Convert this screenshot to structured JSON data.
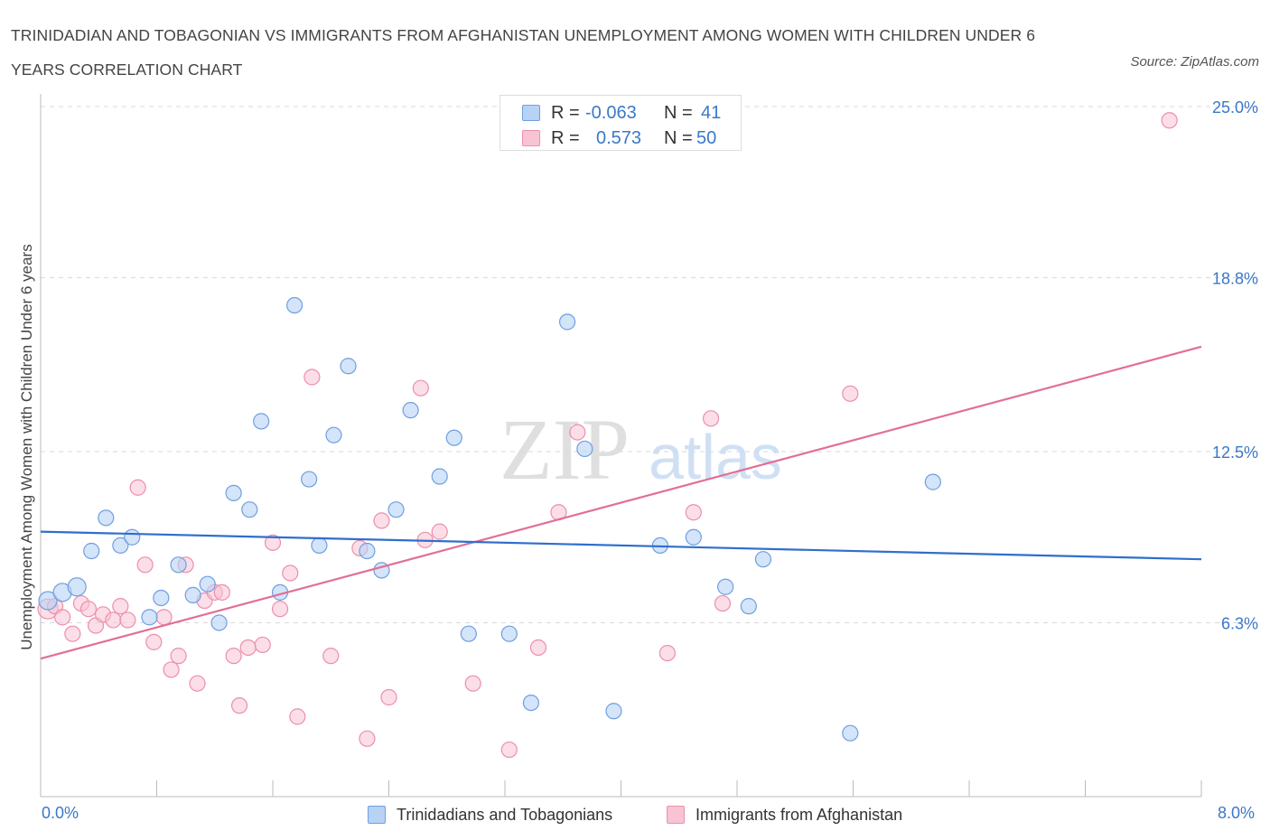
{
  "header": {
    "title": "TRINIDADIAN AND TOBAGONIAN VS IMMIGRANTS FROM AFGHANISTAN UNEMPLOYMENT AMONG WOMEN WITH CHILDREN UNDER 6 YEARS CORRELATION CHART",
    "source": "Source: ZipAtlas.com"
  },
  "watermark": {
    "zip": "ZIP",
    "atlas": "atlas"
  },
  "stats": {
    "r_label": "R =",
    "n_label": "N =",
    "rows": [
      {
        "r": "-0.063",
        "n": "41"
      },
      {
        "r": "0.573",
        "n": "50"
      }
    ]
  },
  "legend": {
    "items": [
      {
        "label": "Trinidadians and Tobagonians"
      },
      {
        "label": "Immigrants from Afghanistan"
      }
    ]
  },
  "colors": {
    "blue_fill": "#b8d2f5",
    "blue_stroke": "#6f9fe0",
    "blue_line": "#2f6fcc",
    "pink_fill": "#f8c3d3",
    "pink_stroke": "#ec8fab",
    "pink_line": "#e36d96",
    "axis_text": "#3a78c9",
    "grid": "#d9d9d9"
  },
  "chart_data": {
    "type": "scatter",
    "xlabel": "",
    "ylabel": "Unemployment Among Women with Children Under 6 years",
    "xlim": [
      0,
      8.0
    ],
    "ylim": [
      0,
      25.0
    ],
    "x_tick_labels": [
      "0.0%",
      "8.0%"
    ],
    "y_ticks": [
      6.3,
      12.5,
      18.8,
      25.0
    ],
    "y_tick_labels": [
      "6.3%",
      "12.5%",
      "18.8%",
      "25.0%"
    ],
    "grid": "horizontal dashed",
    "legend_position": "bottom-center",
    "series": [
      {
        "name": "Trinidadians and Tobagonians",
        "r": -0.063,
        "n": 41,
        "trend": {
          "x": [
            0,
            8.0
          ],
          "y": [
            9.6,
            8.6
          ]
        },
        "points": [
          [
            0.05,
            7.1
          ],
          [
            0.15,
            7.4
          ],
          [
            0.25,
            7.6
          ],
          [
            0.35,
            8.9
          ],
          [
            0.45,
            10.1
          ],
          [
            0.55,
            9.1
          ],
          [
            0.63,
            9.4
          ],
          [
            0.75,
            6.5
          ],
          [
            0.83,
            7.2
          ],
          [
            0.95,
            8.4
          ],
          [
            1.05,
            7.3
          ],
          [
            1.15,
            7.7
          ],
          [
            1.23,
            6.3
          ],
          [
            1.33,
            11.0
          ],
          [
            1.44,
            10.4
          ],
          [
            1.52,
            13.6
          ],
          [
            1.65,
            7.4
          ],
          [
            1.75,
            17.8
          ],
          [
            1.85,
            11.5
          ],
          [
            1.92,
            9.1
          ],
          [
            2.02,
            13.1
          ],
          [
            2.12,
            15.6
          ],
          [
            2.25,
            8.9
          ],
          [
            2.35,
            8.2
          ],
          [
            2.45,
            10.4
          ],
          [
            2.55,
            14.0
          ],
          [
            2.75,
            11.6
          ],
          [
            2.85,
            13.0
          ],
          [
            2.95,
            5.9
          ],
          [
            3.23,
            5.9
          ],
          [
            3.38,
            3.4
          ],
          [
            3.63,
            17.2
          ],
          [
            3.75,
            12.6
          ],
          [
            3.95,
            3.1
          ],
          [
            4.27,
            9.1
          ],
          [
            4.5,
            9.4
          ],
          [
            4.72,
            7.6
          ],
          [
            4.88,
            6.9
          ],
          [
            4.98,
            8.6
          ],
          [
            5.58,
            2.3
          ],
          [
            6.15,
            11.4
          ]
        ]
      },
      {
        "name": "Immigrants from Afghanistan",
        "r": 0.573,
        "n": 50,
        "trend": {
          "x": [
            0,
            8.0
          ],
          "y": [
            5.0,
            16.3
          ]
        },
        "points": [
          [
            0.05,
            6.8
          ],
          [
            0.1,
            6.9
          ],
          [
            0.15,
            6.5
          ],
          [
            0.22,
            5.9
          ],
          [
            0.28,
            7.0
          ],
          [
            0.33,
            6.8
          ],
          [
            0.38,
            6.2
          ],
          [
            0.43,
            6.6
          ],
          [
            0.5,
            6.4
          ],
          [
            0.55,
            6.9
          ],
          [
            0.6,
            6.4
          ],
          [
            0.67,
            11.2
          ],
          [
            0.72,
            8.4
          ],
          [
            0.78,
            5.6
          ],
          [
            0.85,
            6.5
          ],
          [
            0.9,
            4.6
          ],
          [
            0.95,
            5.1
          ],
          [
            1.0,
            8.4
          ],
          [
            1.08,
            4.1
          ],
          [
            1.13,
            7.1
          ],
          [
            1.2,
            7.4
          ],
          [
            1.25,
            7.4
          ],
          [
            1.33,
            5.1
          ],
          [
            1.37,
            3.3
          ],
          [
            1.43,
            5.4
          ],
          [
            1.53,
            5.5
          ],
          [
            1.6,
            9.2
          ],
          [
            1.65,
            6.8
          ],
          [
            1.72,
            8.1
          ],
          [
            1.77,
            2.9
          ],
          [
            1.87,
            15.2
          ],
          [
            2.0,
            5.1
          ],
          [
            2.2,
            9.0
          ],
          [
            2.25,
            2.1
          ],
          [
            2.35,
            10.0
          ],
          [
            2.4,
            3.6
          ],
          [
            2.62,
            14.8
          ],
          [
            2.65,
            9.3
          ],
          [
            2.75,
            9.6
          ],
          [
            2.98,
            4.1
          ],
          [
            3.23,
            1.7
          ],
          [
            3.43,
            5.4
          ],
          [
            3.57,
            10.3
          ],
          [
            3.7,
            13.2
          ],
          [
            4.32,
            5.2
          ],
          [
            4.5,
            10.3
          ],
          [
            4.62,
            13.7
          ],
          [
            4.7,
            7.0
          ],
          [
            5.58,
            14.6
          ],
          [
            7.78,
            24.5
          ]
        ]
      }
    ]
  }
}
